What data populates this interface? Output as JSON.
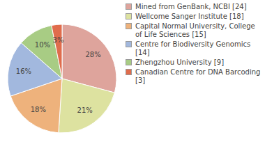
{
  "chart_data": {
    "type": "pie",
    "categories": [
      "Mined from GenBank, NCBI [24]",
      "Wellcome Sanger Institute [18]",
      "Capital Normal University, College of Life Sciences [15]",
      "Centre for Biodiversity Genomics [14]",
      "Zhengzhou University [9]",
      "Canadian Centre for DNA Barcoding [3]"
    ],
    "values": [
      28,
      21,
      18,
      16,
      10,
      3
    ],
    "value_labels": [
      "28%",
      "21%",
      "18%",
      "16%",
      "10%",
      "3%"
    ],
    "colors": [
      "#dea49c",
      "#dde2a0",
      "#eeb27c",
      "#a2b8de",
      "#a8cc84",
      "#e06c4c"
    ],
    "data_labels": true,
    "legend": "right"
  }
}
